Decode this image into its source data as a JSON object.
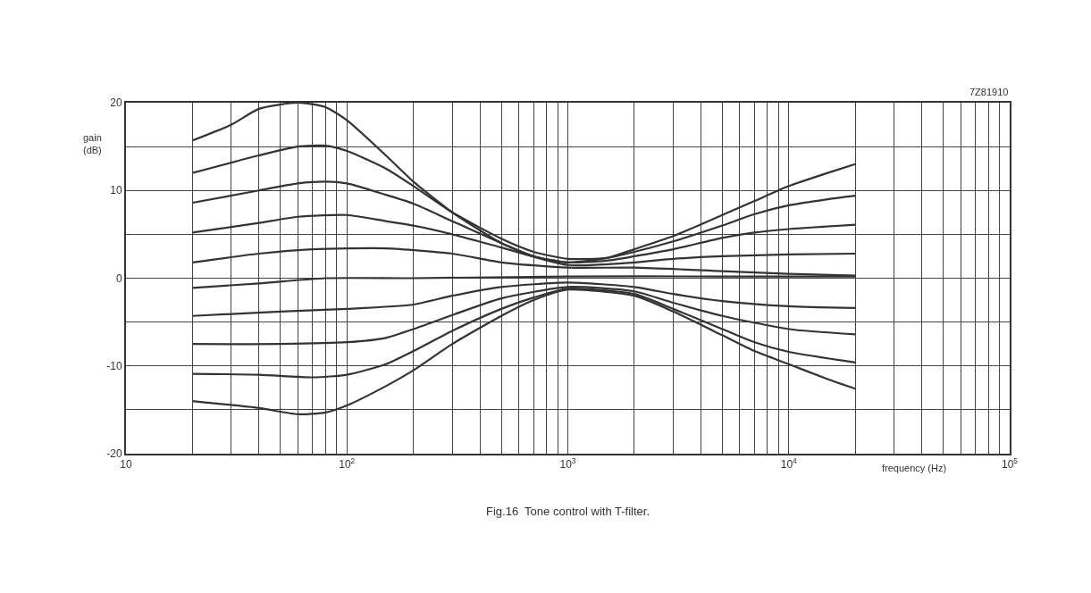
{
  "chart_data": {
    "type": "line",
    "xlabel": "frequency (Hz)",
    "ylabel": "gain\n(dB)",
    "annotations": [
      "7Z81910",
      "Fig.16  Tone control with T-filter."
    ],
    "log": "x",
    "grid": true,
    "marker": "none",
    "line_style": "solid",
    "xlim": [
      10,
      100000
    ],
    "ylim": [
      -20,
      20
    ],
    "xticks": [
      10,
      {
        "value": 20,
        "label": null
      },
      {
        "value": 30,
        "label": null
      },
      {
        "value": 40,
        "label": null
      },
      {
        "value": 50,
        "label": null
      },
      {
        "value": 60,
        "label": null
      },
      {
        "value": 70,
        "label": null
      },
      {
        "value": 80,
        "label": null
      },
      {
        "value": 90,
        "label": null
      },
      {
        "value": 100,
        "label": "10$^{2}$"
      },
      {
        "value": 200,
        "label": null
      },
      {
        "value": 300,
        "label": null
      },
      {
        "value": 400,
        "label": null
      },
      {
        "value": 500,
        "label": null
      },
      {
        "value": 600,
        "label": null
      },
      {
        "value": 700,
        "label": null
      },
      {
        "value": 800,
        "label": null
      },
      {
        "value": 900,
        "label": null
      },
      {
        "value": 1000,
        "label": "10$^{3}$"
      },
      {
        "value": 2000,
        "label": null
      },
      {
        "value": 3000,
        "label": null
      },
      {
        "value": 4000,
        "label": null
      },
      {
        "value": 5000,
        "label": null
      },
      {
        "value": 6000,
        "label": null
      },
      {
        "value": 7000,
        "label": null
      },
      {
        "value": 8000,
        "label": null
      },
      {
        "value": 9000,
        "label": null
      },
      {
        "value": 10000,
        "label": "10$^{4}$"
      },
      {
        "value": 20000,
        "label": null
      },
      {
        "value": 30000,
        "label": null
      },
      {
        "value": 40000,
        "label": null
      },
      {
        "value": 50000,
        "label": null
      },
      {
        "value": 60000,
        "label": null
      },
      {
        "value": 70000,
        "label": null
      },
      {
        "value": 80000,
        "label": null
      },
      {
        "value": 90000,
        "label": null
      },
      {
        "value": 100000,
        "label": "10$^{5}$"
      }
    ],
    "yticks": [
      -20,
      {
        "value": -15,
        "label": null
      },
      -10,
      {
        "value": -5,
        "label": null
      },
      0,
      {
        "value": 5,
        "label": null
      },
      10,
      {
        "value": 15,
        "label": null
      },
      20
    ],
    "series": [
      {
        "color": "#333333",
        "x": [
          20,
          30,
          40,
          60,
          80,
          100,
          150,
          200,
          300,
          500,
          700,
          1000,
          1500,
          2000,
          3000,
          5000,
          7000,
          10000,
          15000,
          20000
        ],
        "values": [
          15.7,
          17.5,
          19.3,
          20,
          19.5,
          18,
          14,
          11,
          7.5,
          4,
          2.5,
          1.8,
          2.3,
          3.3,
          4.8,
          7.2,
          8.8,
          10.5,
          12,
          13
        ]
      },
      {
        "color": "#333333",
        "x": [
          20,
          40,
          60,
          80,
          100,
          150,
          200,
          300,
          500,
          700,
          1000,
          1500,
          2000,
          3000,
          5000,
          7000,
          10000,
          15000,
          20000
        ],
        "values": [
          12,
          14,
          15,
          15.1,
          14.5,
          12.5,
          10.5,
          7.5,
          4.5,
          3,
          2.2,
          2.3,
          3,
          4.2,
          6,
          7.3,
          8.3,
          9,
          9.4
        ]
      },
      {
        "color": "#333333",
        "x": [
          20,
          40,
          60,
          80,
          100,
          150,
          200,
          300,
          500,
          700,
          1000,
          1500,
          2000,
          3000,
          5000,
          7000,
          10000,
          20000
        ],
        "values": [
          8.6,
          10,
          10.8,
          11,
          10.8,
          9.5,
          8.5,
          6.5,
          4,
          2.5,
          1.8,
          2,
          2.5,
          3.3,
          4.6,
          5.2,
          5.6,
          6.1
        ]
      },
      {
        "color": "#333333",
        "x": [
          20,
          40,
          60,
          100,
          150,
          200,
          300,
          500,
          1000,
          2000,
          3000,
          5000,
          10000,
          20000
        ],
        "values": [
          5.2,
          6.3,
          7,
          7.2,
          6.5,
          6,
          5,
          3.5,
          1.5,
          1.8,
          2.2,
          2.5,
          2.7,
          2.8
        ]
      },
      {
        "color": "#333333",
        "x": [
          20,
          40,
          70,
          150,
          300,
          500,
          1000,
          2000,
          5000,
          10000,
          20000
        ],
        "values": [
          1.8,
          2.8,
          3.3,
          3.4,
          2.8,
          1.8,
          1.2,
          1.2,
          0.8,
          0.5,
          0.3
        ]
      },
      {
        "color": "#333333",
        "x": [
          20,
          40,
          80,
          200,
          1000,
          5000,
          20000
        ],
        "values": [
          -1.1,
          -0.6,
          0,
          0,
          0.2,
          0.2,
          0.2
        ]
      },
      {
        "color": "#333333",
        "x": [
          20,
          50,
          100,
          200,
          300,
          500,
          1000,
          2000,
          3000,
          5000,
          10000,
          20000
        ],
        "values": [
          -4.3,
          -3.8,
          -3.5,
          -3,
          -2,
          -1,
          -0.5,
          -1,
          -1.8,
          -2.6,
          -3.2,
          -3.4
        ]
      },
      {
        "color": "#333333",
        "x": [
          20,
          50,
          100,
          150,
          200,
          300,
          500,
          1000,
          2000,
          3000,
          5000,
          10000,
          20000
        ],
        "values": [
          -7.5,
          -7.5,
          -7.3,
          -6.8,
          -5.8,
          -4.2,
          -2.3,
          -1,
          -1.5,
          -2.8,
          -4.3,
          -5.8,
          -6.4
        ]
      },
      {
        "color": "#333333",
        "x": [
          20,
          40,
          70,
          100,
          150,
          200,
          300,
          500,
          700,
          1000,
          2000,
          3000,
          5000,
          7000,
          10000,
          20000
        ],
        "values": [
          -10.9,
          -11,
          -11.3,
          -11,
          -9.8,
          -8.3,
          -6,
          -3.5,
          -2.2,
          -1.2,
          -1.8,
          -3.5,
          -5.8,
          -7.3,
          -8.4,
          -9.6
        ]
      },
      {
        "color": "#333333",
        "x": [
          20,
          40,
          60,
          80,
          100,
          150,
          200,
          300,
          500,
          700,
          1000,
          2000,
          3000,
          5000,
          7000,
          10000,
          15000,
          20000
        ],
        "values": [
          -14,
          -14.8,
          -15.5,
          -15.3,
          -14.5,
          -12.3,
          -10.5,
          -7.5,
          -4.3,
          -2.5,
          -1.3,
          -2,
          -3.8,
          -6.5,
          -8.3,
          -9.8,
          -11.5,
          -12.6
        ]
      }
    ]
  }
}
